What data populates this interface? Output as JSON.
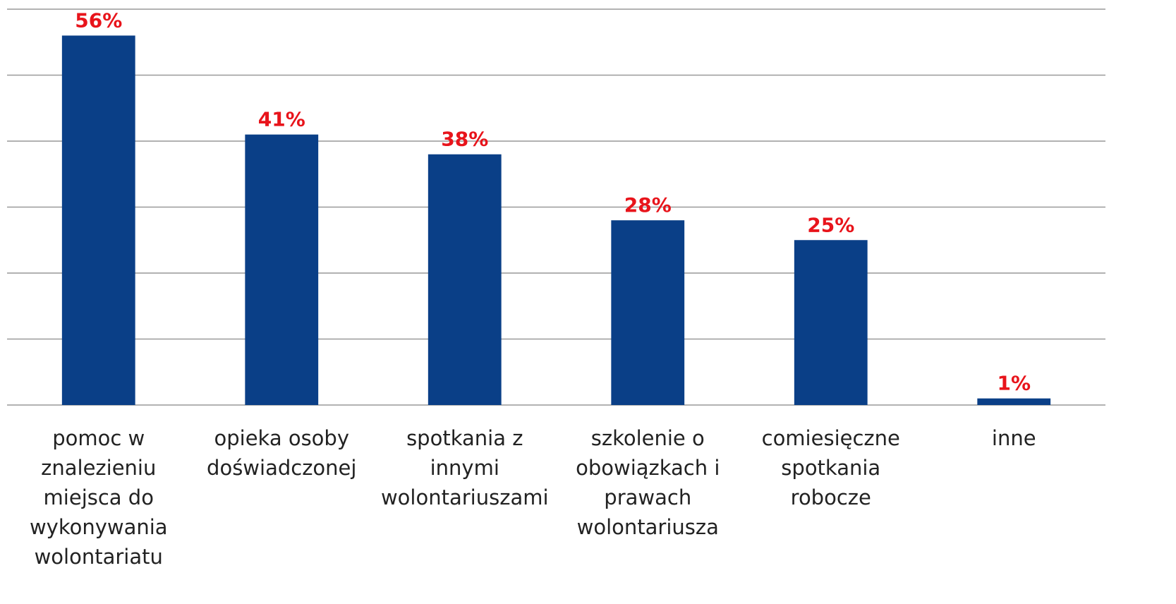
{
  "chart_data": {
    "type": "bar",
    "categories": [
      "pomoc w znalezieniu miejsca do wykonywania wolontariatu",
      "opieka osoby doświadczonej",
      "spotkania z innymi wolontariuszami",
      "szkolenie o obowiązkach i prawach wolontariusza",
      "comiesięczne spotkania robocze",
      "inne"
    ],
    "values": [
      56,
      41,
      38,
      28,
      25,
      1
    ],
    "value_labels": [
      "56%",
      "41%",
      "38%",
      "28%",
      "25%",
      "1%"
    ],
    "color": "#0a3f87",
    "label_color": "#e8141b",
    "ylim": [
      0,
      60
    ],
    "yticks": [
      0,
      10,
      20,
      30,
      40,
      50,
      60
    ],
    "grid": true
  }
}
